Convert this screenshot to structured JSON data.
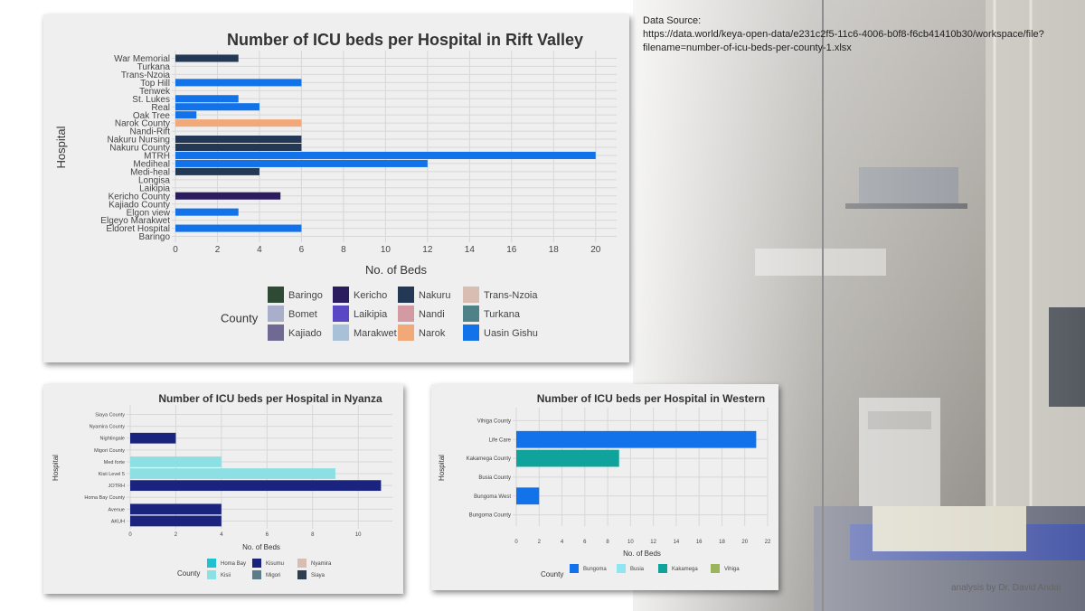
{
  "source": {
    "label": "Data Source:",
    "url_line1": "https://data.world/keya-open-data/e231c2f5-11c6-4006-b0f8-f6cb41410b30/workspace/file?",
    "url_line2": "filename=number-of-icu-beds-per-county-1.xlsx"
  },
  "credit": "analysis by Dr. David Andai",
  "chart_data": [
    {
      "id": "rift",
      "type": "bar",
      "orientation": "horizontal",
      "title": "Number of ICU beds per Hospital in Rift Valley",
      "xlabel": "No. of Beds",
      "ylabel": "Hospital",
      "xlim": [
        0,
        21
      ],
      "xticks": [
        0,
        2,
        4,
        6,
        8,
        10,
        12,
        14,
        16,
        18,
        20
      ],
      "grid": true,
      "legend_title": "County",
      "legend_position": "bottom",
      "legend": [
        {
          "name": "Baringo",
          "color": "#2f4a34"
        },
        {
          "name": "Bomet",
          "color": "#a9aecb"
        },
        {
          "name": "Kajiado",
          "color": "#6e6a93"
        },
        {
          "name": "Kericho",
          "color": "#2b1b5f"
        },
        {
          "name": "Laikipia",
          "color": "#5a47c4"
        },
        {
          "name": "Marakwet",
          "color": "#a8c1d6"
        },
        {
          "name": "Nakuru",
          "color": "#233855"
        },
        {
          "name": "Nandi",
          "color": "#d39aa4"
        },
        {
          "name": "Narok",
          "color": "#f2a97a"
        },
        {
          "name": "Trans-Nzoia",
          "color": "#d9bcb2"
        },
        {
          "name": "Turkana",
          "color": "#4f8286"
        },
        {
          "name": "Uasin Gishu",
          "color": "#1272ea"
        }
      ],
      "bars": [
        {
          "label": "Baringo",
          "value": 0,
          "county": "Baringo"
        },
        {
          "label": "Eldoret Hospital",
          "value": 6,
          "county": "Uasin Gishu"
        },
        {
          "label": "Elgeyo Marakwet",
          "value": 0,
          "county": "Marakwet"
        },
        {
          "label": "Elgon view",
          "value": 3,
          "county": "Uasin Gishu"
        },
        {
          "label": "Kajiado County",
          "value": 0,
          "county": "Kajiado"
        },
        {
          "label": "Kericho County",
          "value": 5,
          "county": "Kericho"
        },
        {
          "label": "Laikipia",
          "value": 0,
          "county": "Laikipia"
        },
        {
          "label": "Longisa",
          "value": 0,
          "county": "Bomet"
        },
        {
          "label": "Medi-heal",
          "value": 4,
          "county": "Nakuru"
        },
        {
          "label": "Mediheal",
          "value": 12,
          "county": "Uasin Gishu"
        },
        {
          "label": "MTRH",
          "value": 20,
          "county": "Uasin Gishu"
        },
        {
          "label": "Nakuru County",
          "value": 6,
          "county": "Nakuru"
        },
        {
          "label": "Nakuru Nursing",
          "value": 6,
          "county": "Nakuru"
        },
        {
          "label": "Nandi-Rift",
          "value": 0,
          "county": "Nandi"
        },
        {
          "label": "Narok County",
          "value": 6,
          "county": "Narok"
        },
        {
          "label": "Oak Tree",
          "value": 1,
          "county": "Uasin Gishu"
        },
        {
          "label": "Real",
          "value": 4,
          "county": "Uasin Gishu"
        },
        {
          "label": "St. Lukes",
          "value": 3,
          "county": "Uasin Gishu"
        },
        {
          "label": "Tenwek",
          "value": 0,
          "county": "Bomet"
        },
        {
          "label": "Top Hill",
          "value": 6,
          "county": "Uasin Gishu"
        },
        {
          "label": "Trans-Nzoia",
          "value": 0,
          "county": "Trans-Nzoia"
        },
        {
          "label": "Turkana",
          "value": 0,
          "county": "Turkana"
        },
        {
          "label": "War Memorial",
          "value": 3,
          "county": "Nakuru"
        }
      ]
    },
    {
      "id": "nyanza",
      "type": "bar",
      "orientation": "horizontal",
      "title": "Number of ICU beds per Hospital in Nyanza",
      "xlabel": "No. of Beds",
      "ylabel": "Hospital",
      "xlim": [
        0,
        11.5
      ],
      "xticks": [
        0,
        2,
        4,
        6,
        8,
        10
      ],
      "grid": true,
      "legend_title": "County",
      "legend_position": "bottom",
      "legend": [
        {
          "name": "Homa Bay",
          "color": "#1fc0cf"
        },
        {
          "name": "Kisii",
          "color": "#8ce0e3"
        },
        {
          "name": "Kisumu",
          "color": "#1a237e"
        },
        {
          "name": "Migori",
          "color": "#5b7d8a"
        },
        {
          "name": "Nyamira",
          "color": "#d9bcb2"
        },
        {
          "name": "Siaya",
          "color": "#2d3e50"
        }
      ],
      "bars": [
        {
          "label": "AKUH",
          "value": 4,
          "county": "Kisumu"
        },
        {
          "label": "Avenue",
          "value": 4,
          "county": "Kisumu"
        },
        {
          "label": "Homa Bay County",
          "value": 0,
          "county": "Homa Bay"
        },
        {
          "label": "JOTRH",
          "value": 11,
          "county": "Kisumu"
        },
        {
          "label": "Kisii Level 5",
          "value": 9,
          "county": "Kisii"
        },
        {
          "label": "Med forte",
          "value": 4,
          "county": "Kisii"
        },
        {
          "label": "Migori County",
          "value": 0,
          "county": "Migori"
        },
        {
          "label": "Nightingale",
          "value": 2,
          "county": "Kisumu"
        },
        {
          "label": "Nyamira County",
          "value": 0,
          "county": "Nyamira"
        },
        {
          "label": "Siaya County",
          "value": 0,
          "county": "Siaya"
        }
      ]
    },
    {
      "id": "western",
      "type": "bar",
      "orientation": "horizontal",
      "title": "Number of ICU beds per Hospital in Western",
      "xlabel": "No. of Beds",
      "ylabel": "Hospital",
      "xlim": [
        0,
        22
      ],
      "xticks": [
        0,
        2,
        4,
        6,
        8,
        10,
        12,
        14,
        16,
        18,
        20,
        22
      ],
      "grid": true,
      "legend_title": "County",
      "legend_position": "bottom",
      "legend": [
        {
          "name": "Bungoma",
          "color": "#1272ea"
        },
        {
          "name": "Busia",
          "color": "#8fe6f2"
        },
        {
          "name": "Kakamega",
          "color": "#10a39b"
        },
        {
          "name": "Vihiga",
          "color": "#9bb65a"
        }
      ],
      "bars": [
        {
          "label": "Bungoma County",
          "value": 0,
          "county": "Bungoma"
        },
        {
          "label": "Bungoma West",
          "value": 2,
          "county": "Bungoma"
        },
        {
          "label": "Busia County",
          "value": 0,
          "county": "Busia"
        },
        {
          "label": "Kakamega County",
          "value": 9,
          "county": "Kakamega"
        },
        {
          "label": "Life Care",
          "value": 21,
          "county": "Bungoma"
        },
        {
          "label": "Vihiga County",
          "value": 0,
          "county": "Vihiga"
        }
      ]
    }
  ]
}
